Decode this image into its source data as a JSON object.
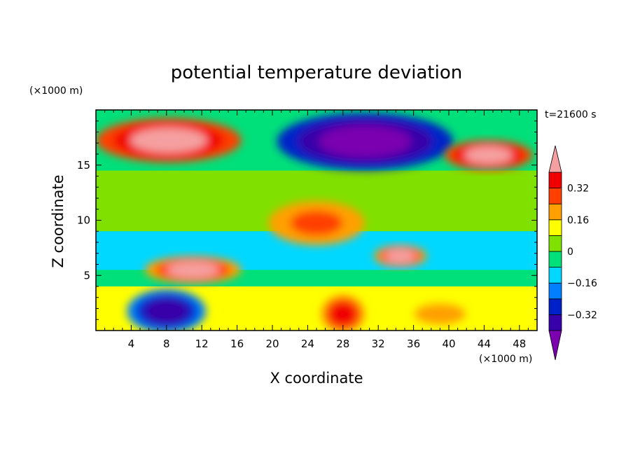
{
  "chart_data": {
    "type": "heatmap",
    "title": "potential temperature deviation",
    "xlabel": "X coordinate",
    "ylabel": "Z coordinate",
    "x_unit": "(×1000 m)",
    "y_unit": "(×1000 m)",
    "time_label": "t=21600 s",
    "xlim": [
      0,
      50
    ],
    "ylim": [
      0,
      20
    ],
    "x_ticks": [
      4,
      8,
      12,
      16,
      20,
      24,
      28,
      32,
      36,
      40,
      44,
      48
    ],
    "y_ticks": [
      5,
      10,
      15
    ],
    "colorbar": {
      "levels": [
        -0.4,
        -0.32,
        -0.24,
        -0.16,
        -0.08,
        0,
        0.08,
        0.16,
        0.24,
        0.32,
        0.4
      ],
      "tick_values": [
        0.32,
        0.16,
        0,
        -0.16,
        -0.32
      ],
      "tick_labels": [
        "0.32",
        "0.16",
        "0",
        "−0.16",
        "−0.32"
      ],
      "colors": [
        "#7a00b0",
        "#3800a8",
        "#0020c8",
        "#0080ff",
        "#00d8ff",
        "#00e07a",
        "#80e000",
        "#ffff00",
        "#ffa000",
        "#ff4000",
        "#f00000",
        "#f5a0a0"
      ],
      "extend": "both"
    },
    "regions": [
      {
        "value": 0.45,
        "x_range": [
          0.5,
          16
        ],
        "z_range": [
          15.5,
          19
        ],
        "description_value": "pink high band upper left"
      },
      {
        "value": -0.45,
        "x_range": [
          21,
          40
        ],
        "z_range": [
          14.8,
          19.5
        ],
        "description_value": "purple cold blob upper center"
      },
      {
        "value": 0.45,
        "x_range": [
          40,
          49
        ],
        "z_range": [
          14.8,
          17
        ],
        "description_value": "pink upper right"
      },
      {
        "value": 0.3,
        "x_range": [
          20,
          30
        ],
        "z_range": [
          8,
          11.5
        ],
        "description_value": "warm plume mid"
      },
      {
        "value": 0.4,
        "x_range": [
          32,
          37
        ],
        "z_range": [
          6,
          7.5
        ],
        "description_value": "pink mid right"
      },
      {
        "value": 0.4,
        "x_range": [
          6,
          16
        ],
        "z_range": [
          4.5,
          6.5
        ],
        "description_value": "pink low left"
      },
      {
        "value": -0.35,
        "x_range": [
          4,
          12
        ],
        "z_range": [
          0,
          3.5
        ],
        "description_value": "cold lower left"
      },
      {
        "value": 0.35,
        "x_range": [
          26,
          30
        ],
        "z_range": [
          0,
          3
        ],
        "description_value": "warm lower center"
      },
      {
        "value": 0.2,
        "x_range": [
          34,
          44
        ],
        "z_range": [
          0,
          3
        ],
        "description_value": "warm lower right"
      }
    ]
  }
}
